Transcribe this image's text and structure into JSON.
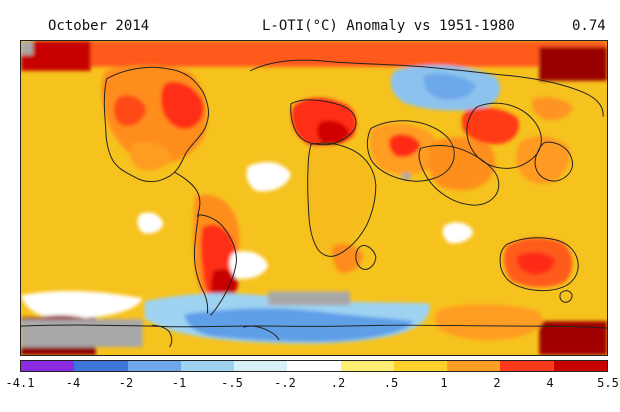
{
  "header": {
    "period": "October 2014",
    "title": "L-OTI(°C) Anomaly vs 1951-1980",
    "global_mean": "0.74"
  },
  "legend": {
    "tick_labels": [
      "-4.1",
      "-4",
      "-2",
      "-1",
      "-.5",
      "-.2",
      ".2",
      ".5",
      "1",
      "2",
      "4",
      "5.5"
    ],
    "colors": [
      "#8a2be2",
      "#3f75d8",
      "#6ea8ea",
      "#9fd2f0",
      "#d7f0f8",
      "#ffffff",
      "#ffef74",
      "#fed12b",
      "#ff9f24",
      "#ff3a1c",
      "#c80000"
    ]
  },
  "colors": {
    "background": "#ffffff",
    "map_base": "#f6c21d",
    "missing_data": "#a7a7a7",
    "coastline": "#222222"
  }
}
